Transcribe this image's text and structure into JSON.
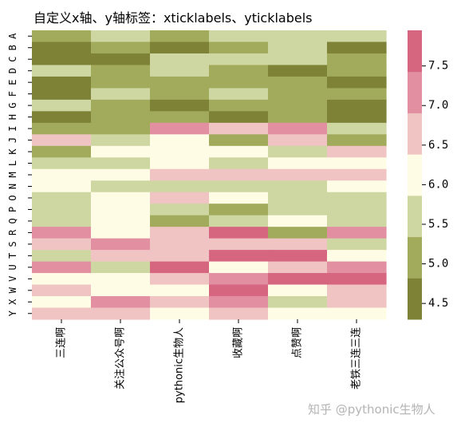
{
  "watermark": "知乎 @pythonic生物人",
  "chart_data": {
    "type": "heatmap",
    "title": "自定义x轴、y轴标签：xticklabels、yticklabels",
    "xticklabels": [
      "三连啊",
      "关注公众号啊",
      "pythonic生物人",
      "收藏啊",
      "点赞啊",
      "老铁三连三连"
    ],
    "yticklabels": [
      "A",
      "B",
      "C",
      "D",
      "E",
      "F",
      "G",
      "H",
      "I",
      "J",
      "K",
      "L",
      "M",
      "N",
      "O",
      "P",
      "Q",
      "R",
      "S",
      "T",
      "U",
      "V",
      "W",
      "X",
      "Y"
    ],
    "values": [
      [
        5.2,
        5.4,
        5.0,
        5.4,
        5.5,
        5.5
      ],
      [
        4.6,
        5.1,
        4.6,
        5.0,
        5.4,
        4.6
      ],
      [
        4.6,
        4.6,
        5.4,
        5.5,
        5.4,
        4.9
      ],
      [
        5.5,
        4.9,
        5.5,
        5.1,
        4.6,
        4.9
      ],
      [
        4.6,
        4.9,
        4.9,
        5.0,
        5.1,
        4.5
      ],
      [
        4.6,
        5.5,
        4.9,
        5.5,
        5.0,
        5.1
      ],
      [
        5.5,
        5.0,
        4.6,
        5.0,
        5.0,
        4.6
      ],
      [
        4.6,
        5.0,
        4.9,
        4.6,
        5.0,
        4.6
      ],
      [
        5.0,
        5.0,
        7.1,
        6.8,
        7.1,
        5.5
      ],
      [
        6.7,
        5.4,
        6.2,
        5.1,
        6.7,
        5.0
      ],
      [
        5.0,
        6.2,
        6.2,
        6.2,
        5.5,
        6.7
      ],
      [
        5.5,
        5.5,
        6.2,
        5.5,
        6.2,
        6.2
      ],
      [
        6.2,
        6.2,
        6.7,
        6.7,
        6.7,
        6.7
      ],
      [
        6.2,
        5.5,
        5.5,
        5.5,
        5.5,
        6.2
      ],
      [
        5.5,
        6.2,
        6.7,
        6.2,
        5.5,
        5.5
      ],
      [
        5.5,
        6.2,
        5.5,
        5.0,
        5.5,
        5.5
      ],
      [
        5.5,
        6.2,
        5.0,
        5.5,
        6.2,
        5.5
      ],
      [
        7.1,
        6.2,
        6.7,
        7.5,
        5.0,
        7.3
      ],
      [
        6.7,
        7.1,
        6.7,
        6.7,
        6.7,
        5.5
      ],
      [
        5.5,
        6.7,
        6.7,
        7.6,
        7.6,
        6.2
      ],
      [
        7.1,
        5.5,
        7.5,
        6.2,
        6.7,
        7.1
      ],
      [
        6.2,
        6.2,
        6.7,
        7.1,
        7.6,
        7.6
      ],
      [
        6.7,
        6.2,
        6.2,
        7.6,
        6.2,
        6.7
      ],
      [
        6.2,
        7.1,
        6.7,
        7.1,
        5.5,
        6.7
      ],
      [
        6.7,
        6.7,
        6.2,
        6.7,
        6.2,
        6.2
      ]
    ],
    "vmin": 4.3,
    "vmax": 7.95,
    "colorbar_ticks": [
      4.5,
      5.0,
      5.5,
      6.0,
      6.5,
      7.0,
      7.5
    ],
    "colorbar_ticklabels": [
      "4.5",
      "5.0",
      "5.5",
      "6.0",
      "6.5",
      "7.0",
      "7.5"
    ],
    "colors": [
      "#7d8236",
      "#a2aa5b",
      "#ced6a2",
      "#fffce6",
      "#f0c4c2",
      "#e28fa2",
      "#d66580"
    ],
    "boundaries": [
      4.3,
      4.821,
      5.343,
      5.864,
      6.386,
      6.907,
      7.429,
      7.95
    ]
  }
}
